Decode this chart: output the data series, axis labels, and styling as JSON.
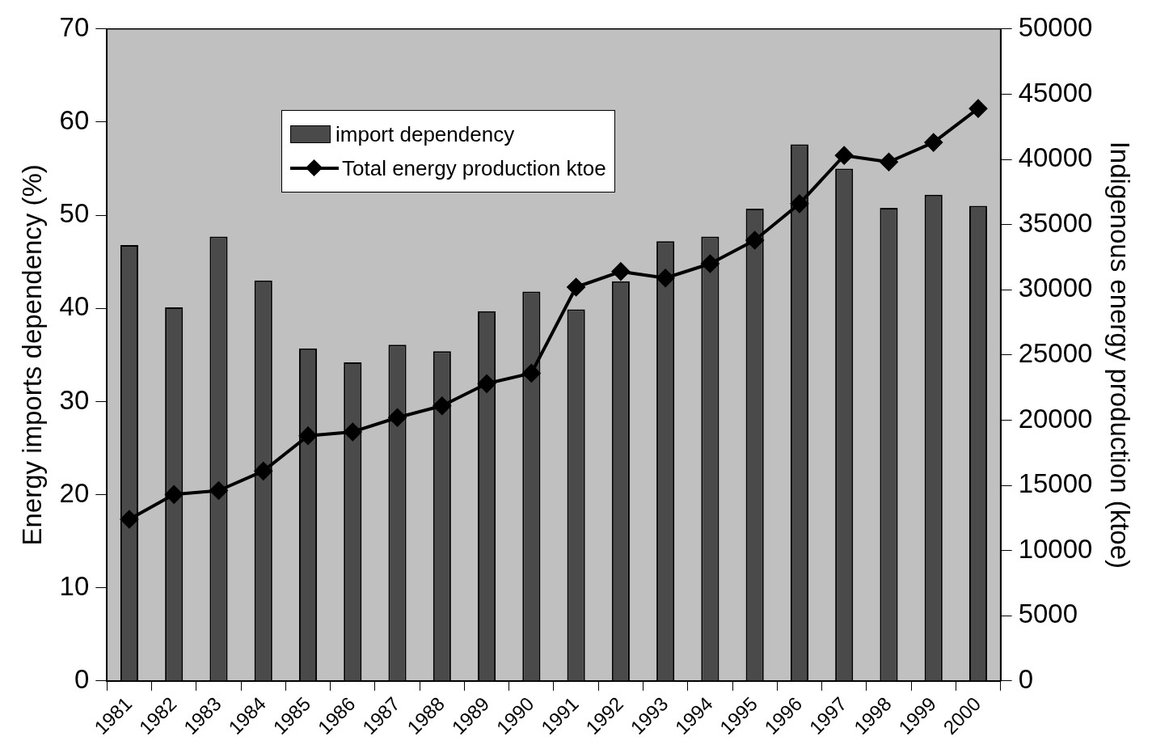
{
  "chart_data": {
    "type": "bar",
    "ylabel": "Energy imports dependency (%)",
    "y2label": "Indigenous energy production (ktoe)",
    "categories": [
      "1981",
      "1982",
      "1983",
      "1984",
      "1985",
      "1986",
      "1987",
      "1988",
      "1989",
      "1990",
      "1991",
      "1992",
      "1993",
      "1994",
      "1995",
      "1996",
      "1997",
      "1998",
      "1999",
      "2000"
    ],
    "series": [
      {
        "name": "import dependency",
        "color": "#4a4a4a",
        "values": [
          46.8,
          40.1,
          47.7,
          43.0,
          35.7,
          34.2,
          36.1,
          35.4,
          39.7,
          41.8,
          39.9,
          42.9,
          47.2,
          47.7,
          50.7,
          57.6,
          55.0,
          50.8,
          52.2,
          51.0
        ]
      },
      {
        "name": "Total energy production ktoe",
        "type": "line",
        "axis": "y2",
        "color": "#000000",
        "marker": "diamond",
        "values": [
          12400,
          14300,
          14600,
          16100,
          18800,
          19100,
          20200,
          21100,
          22800,
          23600,
          30200,
          31400,
          30900,
          32000,
          33800,
          36600,
          40300,
          39800,
          41300,
          43900
        ]
      }
    ],
    "ylim": [
      0,
      70
    ],
    "yticks": [
      0,
      10,
      20,
      30,
      40,
      50,
      60,
      70
    ],
    "y2lim": [
      0,
      50000
    ],
    "y2ticks": [
      0,
      5000,
      10000,
      15000,
      20000,
      25000,
      30000,
      35000,
      40000,
      45000,
      50000
    ],
    "grid": false,
    "legend": "top left"
  }
}
